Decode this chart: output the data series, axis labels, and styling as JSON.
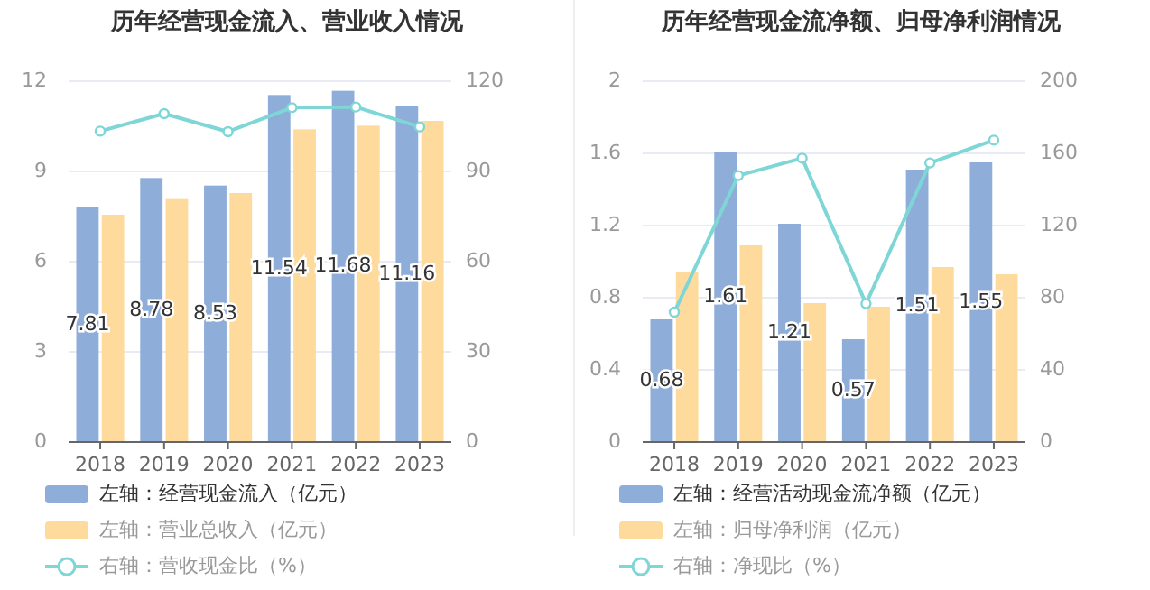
{
  "chart_data": [
    {
      "type": "bar",
      "title": "历年经营现金流入、营业收入情况",
      "categories": [
        "2018",
        "2019",
        "2020",
        "2021",
        "2022",
        "2023"
      ],
      "ylim": [
        0,
        12
      ],
      "yticks": [
        0,
        3,
        6,
        9,
        12
      ],
      "y2lim": [
        0,
        120
      ],
      "y2ticks": [
        0,
        30,
        60,
        90,
        120
      ],
      "grid": "y",
      "legend": "bottom",
      "series": [
        {
          "name": "左轴：经营现金流入（亿元）",
          "color": "#8eadd9",
          "values": [
            7.81,
            8.78,
            8.53,
            11.54,
            11.68,
            11.16
          ],
          "value_labels": [
            "7.81",
            "8.78",
            "8.53",
            "11.54",
            "11.68",
            "11.16"
          ]
        },
        {
          "name": "左轴：营业总收入（亿元）",
          "color": "#fedb9c",
          "values": [
            7.56,
            8.08,
            8.28,
            10.4,
            10.52,
            10.68
          ]
        },
        {
          "name": "右轴：营收现金比（%）",
          "type": "line",
          "axis": "y2",
          "color": "#7fd6d6",
          "marker": "circle",
          "values": [
            103.4,
            109.2,
            103.2,
            111.2,
            111.4,
            104.8
          ]
        }
      ]
    },
    {
      "type": "bar",
      "title": "历年经营现金流净额、归母净利润情况",
      "categories": [
        "2018",
        "2019",
        "2020",
        "2021",
        "2022",
        "2023"
      ],
      "ylim": [
        0,
        2
      ],
      "yticks": [
        0,
        0.4,
        0.8,
        1.2,
        1.6,
        2
      ],
      "y2lim": [
        0,
        200
      ],
      "y2ticks": [
        0,
        40,
        80,
        120,
        160,
        200
      ],
      "grid": "y",
      "legend": "bottom",
      "series": [
        {
          "name": "左轴：经营活动现金流净额（亿元）",
          "color": "#8eadd9",
          "values": [
            0.68,
            1.61,
            1.21,
            0.57,
            1.51,
            1.55
          ],
          "value_labels": [
            "0.68",
            "1.61",
            "1.21",
            "0.57",
            "1.51",
            "1.55"
          ]
        },
        {
          "name": "左轴：归母净利润（亿元）",
          "color": "#fedb9c",
          "values": [
            0.94,
            1.09,
            0.77,
            0.75,
            0.97,
            0.93
          ]
        },
        {
          "name": "右轴：净现比（%）",
          "type": "line",
          "axis": "y2",
          "color": "#7fd6d6",
          "marker": "circle",
          "values": [
            72,
            147.7,
            157.3,
            76.7,
            154.7,
            167.3
          ]
        }
      ]
    }
  ]
}
